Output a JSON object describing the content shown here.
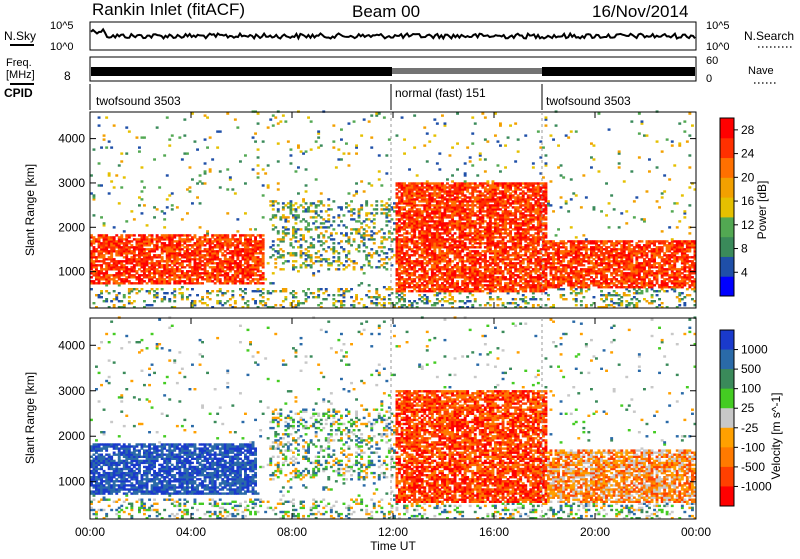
{
  "header": {
    "title": "Rankin Inlet (fitACF)",
    "beam": "Beam 00",
    "date": "16/Nov/2014"
  },
  "noise_panel": {
    "left_label": "N.Sky",
    "left_ticks": [
      "10^5",
      "10^0"
    ],
    "right_label": "N.Search",
    "right_ticks": [
      "10^5",
      "10^0"
    ]
  },
  "freq_panel": {
    "left_label_1": "Freq.",
    "left_label_2": "[MHz]",
    "left_tick": "8",
    "right_label": "Nave",
    "right_ticks": [
      "60",
      "0"
    ]
  },
  "cpid_panel": {
    "label": "CPID",
    "segments": [
      {
        "name": "twofsound 3503",
        "start_hour": 0,
        "end_hour": 12
      },
      {
        "name": "normal (fast) 151",
        "start_hour": 12,
        "end_hour": 18
      },
      {
        "name": "twofsound 3503",
        "start_hour": 18,
        "end_hour": 24
      }
    ]
  },
  "colors": {
    "power": [
      "#0000ff",
      "#1f4fa8",
      "#3a8a5a",
      "#52a852",
      "#e5c000",
      "#f2a000",
      "#ff7000",
      "#ff3000",
      "#ff0000"
    ],
    "velocity": [
      "#ff0000",
      "#ff4000",
      "#ff7a00",
      "#ffa000",
      "#c8c8c8",
      "#44cc22",
      "#3a8a5a",
      "#2a6aa8",
      "#1a3acc"
    ]
  },
  "chart_data": [
    {
      "type": "heatmap",
      "title": "Power",
      "xlabel": "",
      "ylabel": "Slant Range [km]",
      "xlim": [
        0,
        24
      ],
      "ylim": [
        180,
        4600
      ],
      "y_ticks": [
        1000,
        2000,
        3000,
        4000
      ],
      "colorbar": {
        "label": "Power [dB]",
        "ticks": [
          4,
          8,
          12,
          16,
          20,
          24,
          28
        ],
        "range": [
          0,
          30
        ]
      },
      "features": [
        {
          "x_range": [
            0,
            6.8
          ],
          "y_range": [
            700,
            1800
          ],
          "value": "25-30"
        },
        {
          "x_range": [
            12,
            18
          ],
          "y_range": [
            500,
            3000
          ],
          "value": "8-28"
        },
        {
          "x_range": [
            18,
            24
          ],
          "y_range": [
            600,
            1700
          ],
          "value": "20-30"
        }
      ]
    },
    {
      "type": "heatmap",
      "title": "Velocity",
      "xlabel": "Time UT",
      "ylabel": "Slant Range [km]",
      "xlim": [
        0,
        24
      ],
      "ylim": [
        180,
        4600
      ],
      "x_tick_labels": [
        "00:00",
        "04:00",
        "08:00",
        "12:00",
        "16:00",
        "20:00",
        "00:00"
      ],
      "y_ticks": [
        1000,
        2000,
        3000,
        4000
      ],
      "colorbar": {
        "label": "Velocity [m s^-1]",
        "ticks": [
          "1000",
          "500",
          "100",
          "25",
          "-25",
          "-100",
          "-500",
          "-1000"
        ]
      },
      "features": [
        {
          "x_range": [
            0,
            6.5
          ],
          "y_range": [
            700,
            1800
          ],
          "value": "500 to 1000"
        },
        {
          "x_range": [
            12,
            18
          ],
          "y_range": [
            500,
            3000
          ],
          "value": "-100 to -1000"
        },
        {
          "x_range": [
            18,
            24
          ],
          "y_range": [
            500,
            1700
          ],
          "value": "-25 to -500"
        }
      ]
    }
  ]
}
